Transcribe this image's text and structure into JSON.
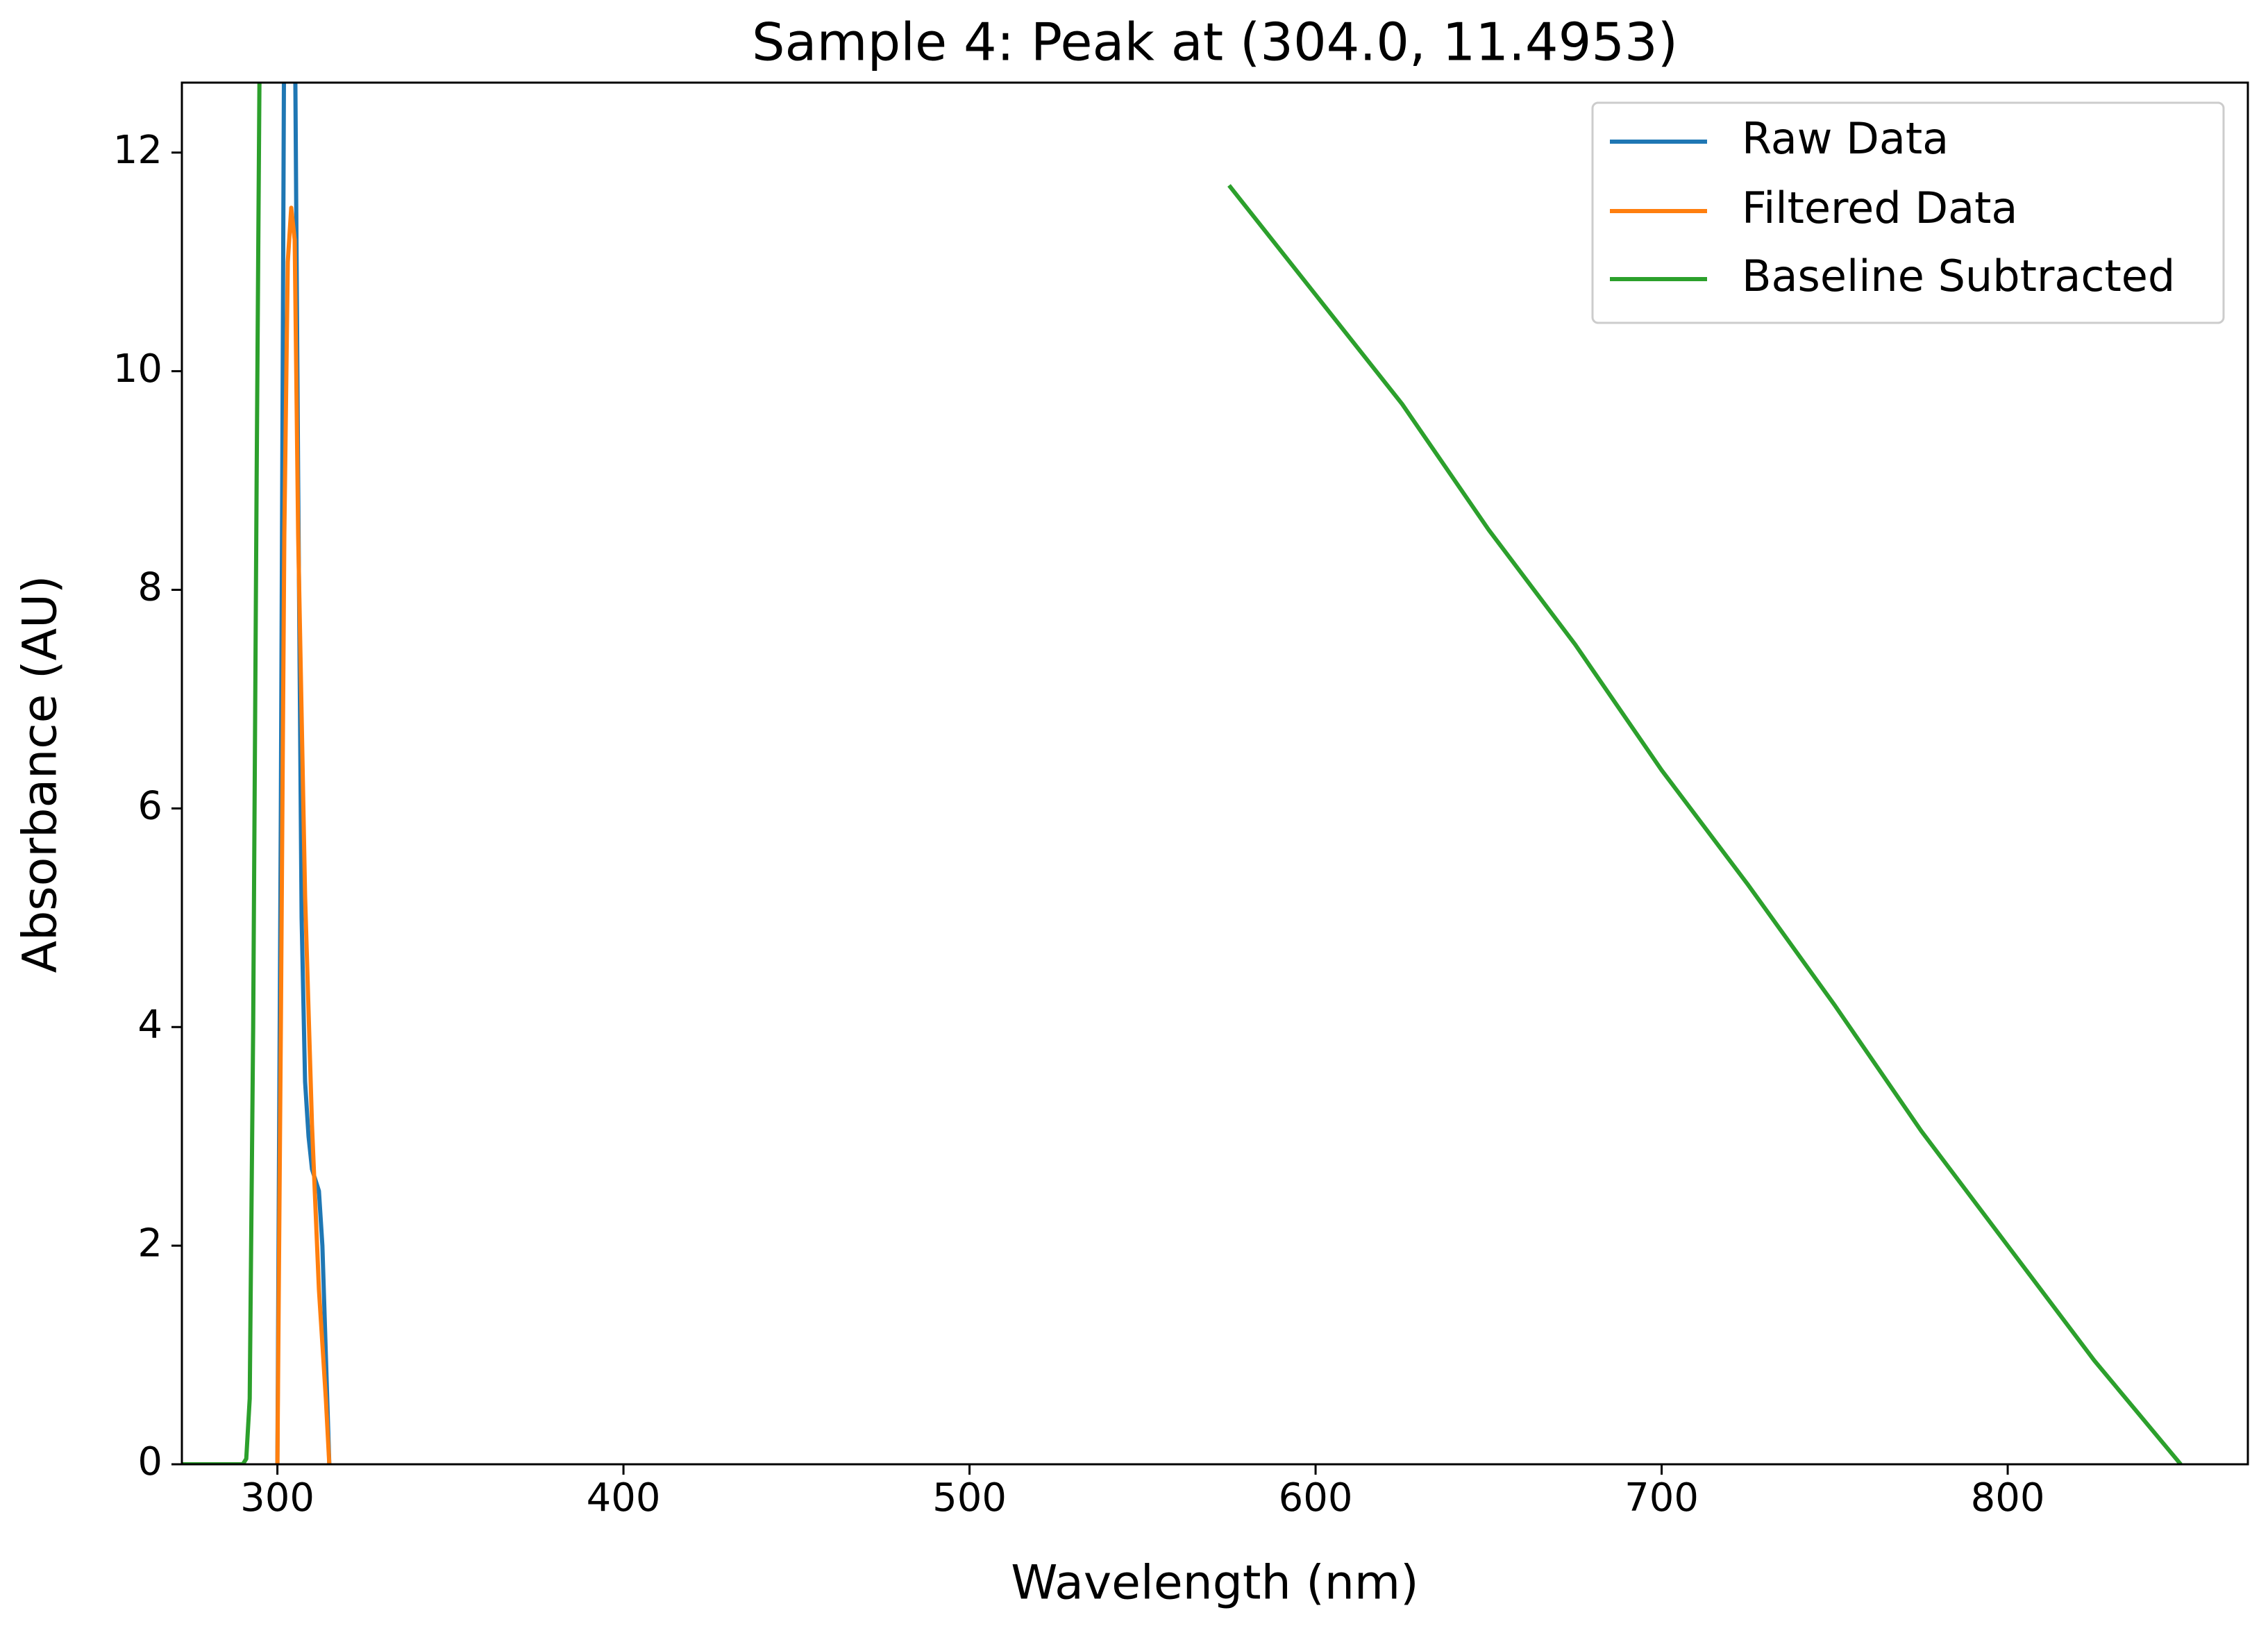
{
  "chart_data": {
    "type": "line",
    "title": "Sample 4: Peak at (304.0, 11.4953)",
    "x_label": "Wavelength (nm)",
    "y_label": "Absorbance (AU)",
    "xlim": [
      272.4,
      869.4
    ],
    "ylim": [
      0,
      12.64
    ],
    "xticks": [
      300,
      400,
      500,
      600,
      700,
      800
    ],
    "yticks": [
      0,
      2,
      4,
      6,
      8,
      10,
      12
    ],
    "legend": "upper right",
    "series": [
      {
        "name": "Raw Data",
        "color": "#1f77b4",
        "x": [
          300,
          301,
          302,
          303,
          304,
          305,
          306,
          307,
          308,
          309,
          310,
          311,
          312,
          313,
          314,
          315
        ],
        "values": [
          0,
          6,
          13.5,
          14,
          14,
          13.5,
          9,
          5,
          3.5,
          3,
          2.7,
          2.6,
          2.5,
          2,
          1,
          0
        ]
      },
      {
        "name": "Filtered Data",
        "color": "#ff7f0e",
        "x": [
          300,
          301,
          302,
          303,
          304,
          305,
          306,
          308,
          310,
          312,
          314,
          315
        ],
        "values": [
          0,
          4,
          8.5,
          11,
          11.4953,
          11.2,
          8.5,
          5.2,
          3.1,
          1.6,
          0.6,
          0
        ]
      },
      {
        "name": "Baseline Subtracted",
        "color": "#2ca02c",
        "x": [
          272.4,
          290,
          291,
          292,
          293,
          294,
          295,
          551,
          575,
          600,
          625,
          650,
          675,
          700,
          725,
          750,
          775,
          800,
          825,
          850
        ],
        "values": [
          0,
          0,
          0.05,
          0.6,
          4,
          9,
          13.5,
          null,
          11.7,
          10.7,
          9.7,
          8.55,
          7.5,
          6.35,
          5.3,
          4.2,
          3.05,
          2.0,
          0.95,
          0
        ]
      }
    ]
  }
}
